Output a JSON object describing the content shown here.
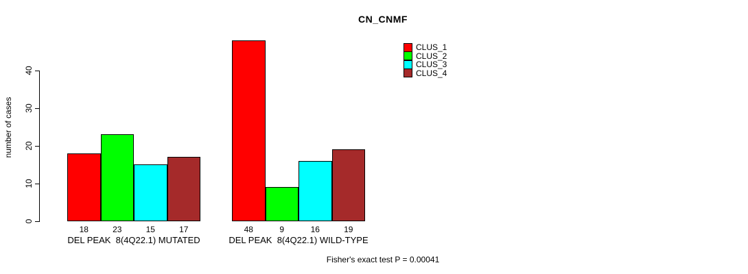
{
  "chart_data": {
    "type": "bar",
    "title": "CN_CNMF",
    "ylabel": "number of cases",
    "xlabel": "",
    "ylim": [
      0,
      50
    ],
    "yticks": [
      0,
      10,
      20,
      30,
      40
    ],
    "grid": false,
    "legend_position": "top-right",
    "categories": [
      "DEL PEAK  8(4Q22.1) MUTATED",
      "DEL PEAK  8(4Q22.1) WILD-TYPE"
    ],
    "series": [
      {
        "name": "CLUS_1",
        "color": "#FF0000",
        "values": [
          18,
          48
        ]
      },
      {
        "name": "CLUS_2",
        "color": "#00FF00",
        "values": [
          23,
          9
        ]
      },
      {
        "name": "CLUS_3",
        "color": "#00FFFF",
        "values": [
          15,
          16
        ]
      },
      {
        "name": "CLUS_4",
        "color": "#A52A2A",
        "values": [
          17,
          19
        ]
      }
    ],
    "bar_value_labels": [
      [
        18,
        23,
        15,
        17
      ],
      [
        48,
        9,
        16,
        19
      ]
    ],
    "footnote": "Fisher's exact test P = 0.00041"
  }
}
